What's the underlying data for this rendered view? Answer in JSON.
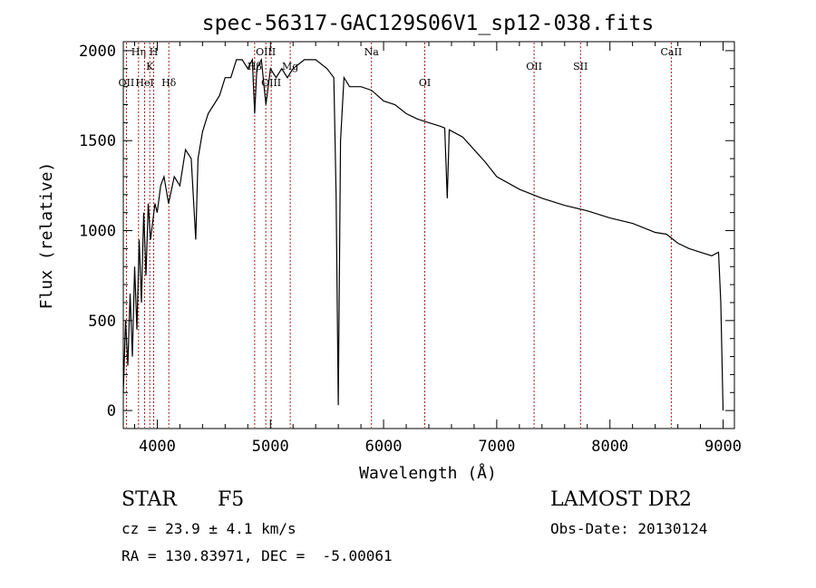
{
  "chart_data": {
    "type": "line",
    "title": "spec-56317-GAC129S06V1_sp12-038.fits",
    "xlabel": "Wavelength (Å)",
    "ylabel": "Flux (relative)",
    "xlim": [
      3700,
      9100
    ],
    "ylim": [
      -100,
      2050
    ],
    "x_ticks": [
      4000,
      5000,
      6000,
      7000,
      8000,
      9000
    ],
    "x_tick_labels": [
      "4000",
      "5000",
      "6000",
      "7000",
      "8000",
      "9000"
    ],
    "y_ticks": [
      0,
      500,
      1000,
      1500,
      2000
    ],
    "y_tick_labels": [
      "0",
      "500",
      "1000",
      "1500",
      "2000"
    ],
    "grid": false,
    "series": [
      {
        "color": "#000000",
        "x": [
          3700,
          3720,
          3740,
          3760,
          3780,
          3800,
          3820,
          3840,
          3860,
          3880,
          3900,
          3920,
          3940,
          3960,
          3980,
          4000,
          4030,
          4060,
          4100,
          4150,
          4200,
          4250,
          4300,
          4340,
          4360,
          4400,
          4450,
          4500,
          4550,
          4600,
          4650,
          4700,
          4750,
          4800,
          4840,
          4861,
          4880,
          4920,
          4960,
          5000,
          5050,
          5100,
          5150,
          5200,
          5300,
          5400,
          5500,
          5560,
          5580,
          5600,
          5620,
          5650,
          5700,
          5800,
          5893,
          6000,
          6100,
          6200,
          6300,
          6400,
          6500,
          6540,
          6563,
          6580,
          6700,
          6800,
          6900,
          7000,
          7200,
          7400,
          7600,
          7800,
          8000,
          8200,
          8400,
          8500,
          8600,
          8700,
          8800,
          8900,
          8960,
          8980,
          9000
        ],
        "y": [
          100,
          500,
          250,
          650,
          300,
          800,
          450,
          950,
          600,
          1100,
          750,
          1150,
          950,
          1050,
          1150,
          1100,
          1250,
          1300,
          1150,
          1300,
          1250,
          1450,
          1400,
          950,
          1400,
          1550,
          1650,
          1700,
          1750,
          1850,
          1850,
          1950,
          1950,
          1900,
          1950,
          1650,
          1900,
          1950,
          1700,
          1900,
          1850,
          1900,
          1850,
          1900,
          1950,
          1950,
          1900,
          1850,
          1200,
          30,
          1500,
          1850,
          1800,
          1800,
          1780,
          1720,
          1700,
          1650,
          1620,
          1600,
          1580,
          1570,
          1180,
          1560,
          1520,
          1450,
          1380,
          1300,
          1230,
          1180,
          1140,
          1110,
          1070,
          1040,
          990,
          980,
          930,
          900,
          880,
          860,
          880,
          600,
          0
        ]
      }
    ],
    "lines": [
      {
        "label": "OII",
        "x": 3727,
        "row": 3
      },
      {
        "label": "Hη",
        "x": 3835,
        "row": 1
      },
      {
        "label": "HeI",
        "x": 3889,
        "row": 3
      },
      {
        "label": "K",
        "x": 3934,
        "row": 2
      },
      {
        "label": "H",
        "x": 3969,
        "row": 1
      },
      {
        "label": "Hδ",
        "x": 4102,
        "row": 3
      },
      {
        "label": "Hβ",
        "x": 4861,
        "row": 2
      },
      {
        "label": "OIII",
        "x": 4959,
        "row": 1
      },
      {
        "label": "OIII",
        "x": 5007,
        "row": 3
      },
      {
        "label": "Mg",
        "x": 5175,
        "row": 2
      },
      {
        "label": "Na",
        "x": 5893,
        "row": 1
      },
      {
        "label": "OI",
        "x": 6364,
        "row": 3
      },
      {
        "label": "OII",
        "x": 7330,
        "row": 2
      },
      {
        "label": "SII",
        "x": 7740,
        "row": 2
      },
      {
        "label": "CaII",
        "x": 8542,
        "row": 1
      }
    ]
  },
  "info": {
    "object_class": "STAR",
    "subclass": "F5",
    "survey": "LAMOST DR2",
    "cz": "cz = 23.9 ± 4.1 km/s",
    "obs_date": "Obs-Date: 20130124",
    "radec": "RA = 130.83971, DEC =  -5.00061"
  }
}
